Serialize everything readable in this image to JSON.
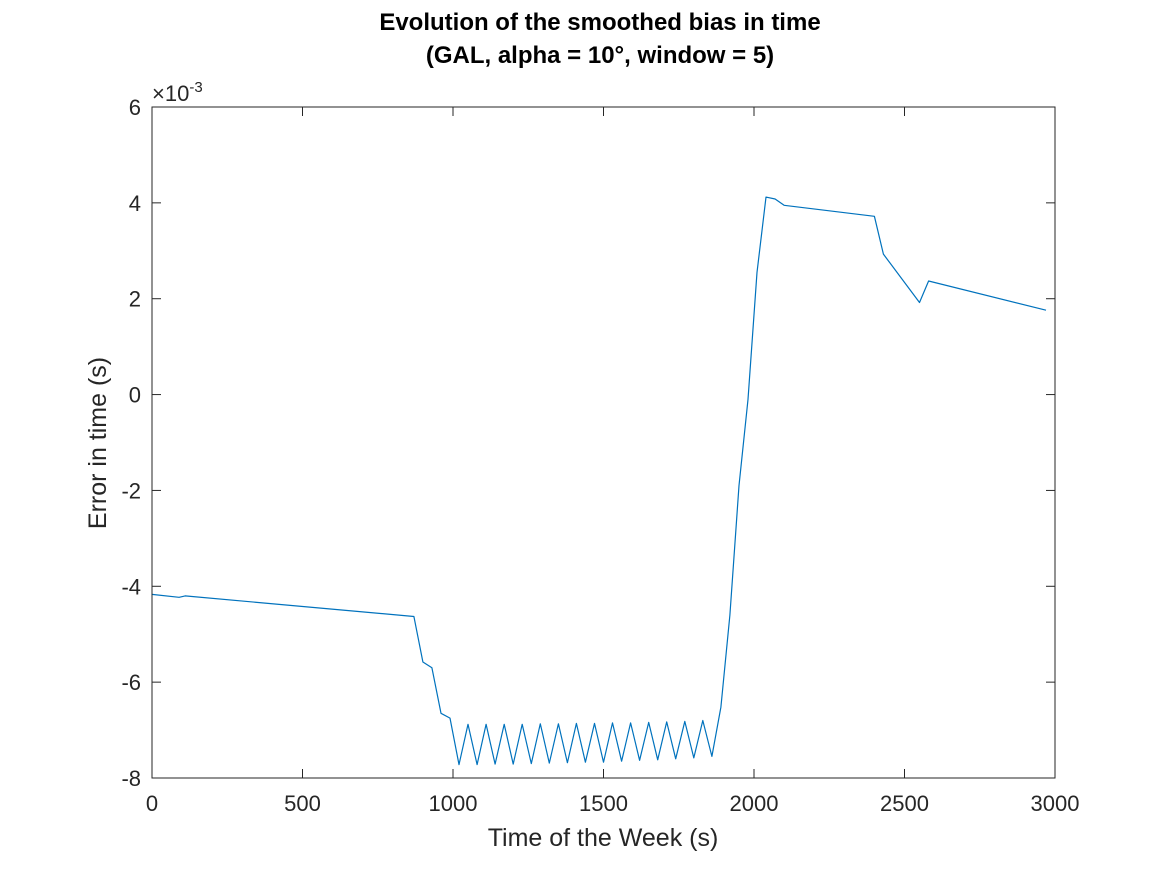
{
  "chart_data": {
    "type": "line",
    "title_line1": "Evolution of the smoothed bias in time",
    "title_line2": "(GAL, alpha = 10°, window = 5)",
    "xlabel": "Time of the Week (s)",
    "ylabel": "Error in time (s)",
    "y_exponent_base": "×10",
    "y_exponent_power": "-3",
    "xlim": [
      0,
      3000
    ],
    "ylim": [
      -8,
      6
    ],
    "xticks": [
      0,
      500,
      1000,
      1500,
      2000,
      2500,
      3000
    ],
    "yticks": [
      -8,
      -6,
      -4,
      -2,
      0,
      2,
      4,
      6
    ],
    "xtick_labels": [
      "0",
      "500",
      "1000",
      "1500",
      "2000",
      "2500",
      "3000"
    ],
    "ytick_labels": [
      "-8",
      "-6",
      "-4",
      "-2",
      "0",
      "2",
      "4",
      "6"
    ],
    "grid": false,
    "line_color": "#0072bd",
    "series": [
      {
        "x": [
          0,
          90,
          110,
          870,
          900,
          930,
          960,
          990,
          1020,
          1050,
          1080,
          1110,
          1140,
          1170,
          1200,
          1230,
          1260,
          1290,
          1320,
          1350,
          1380,
          1410,
          1440,
          1470,
          1500,
          1530,
          1560,
          1590,
          1620,
          1650,
          1680,
          1710,
          1740,
          1770,
          1800,
          1830,
          1860,
          1890,
          1920,
          1950,
          1980,
          2010,
          2040,
          2070,
          2100,
          2400,
          2430,
          2550,
          2580,
          2970
        ],
        "y": [
          -4.17,
          -4.23,
          -4.2,
          -4.63,
          -5.58,
          -5.7,
          -6.65,
          -6.75,
          -7.72,
          -6.88,
          -7.72,
          -6.88,
          -7.71,
          -6.88,
          -7.71,
          -6.88,
          -7.7,
          -6.87,
          -7.69,
          -6.87,
          -7.68,
          -6.86,
          -7.67,
          -6.86,
          -7.67,
          -6.85,
          -7.65,
          -6.85,
          -7.63,
          -6.84,
          -7.62,
          -6.83,
          -7.6,
          -6.82,
          -7.58,
          -6.8,
          -7.55,
          -6.52,
          -4.6,
          -1.9,
          -0.1,
          2.55,
          4.12,
          4.08,
          3.95,
          3.72,
          2.93,
          1.92,
          2.37,
          1.76
        ]
      }
    ]
  }
}
